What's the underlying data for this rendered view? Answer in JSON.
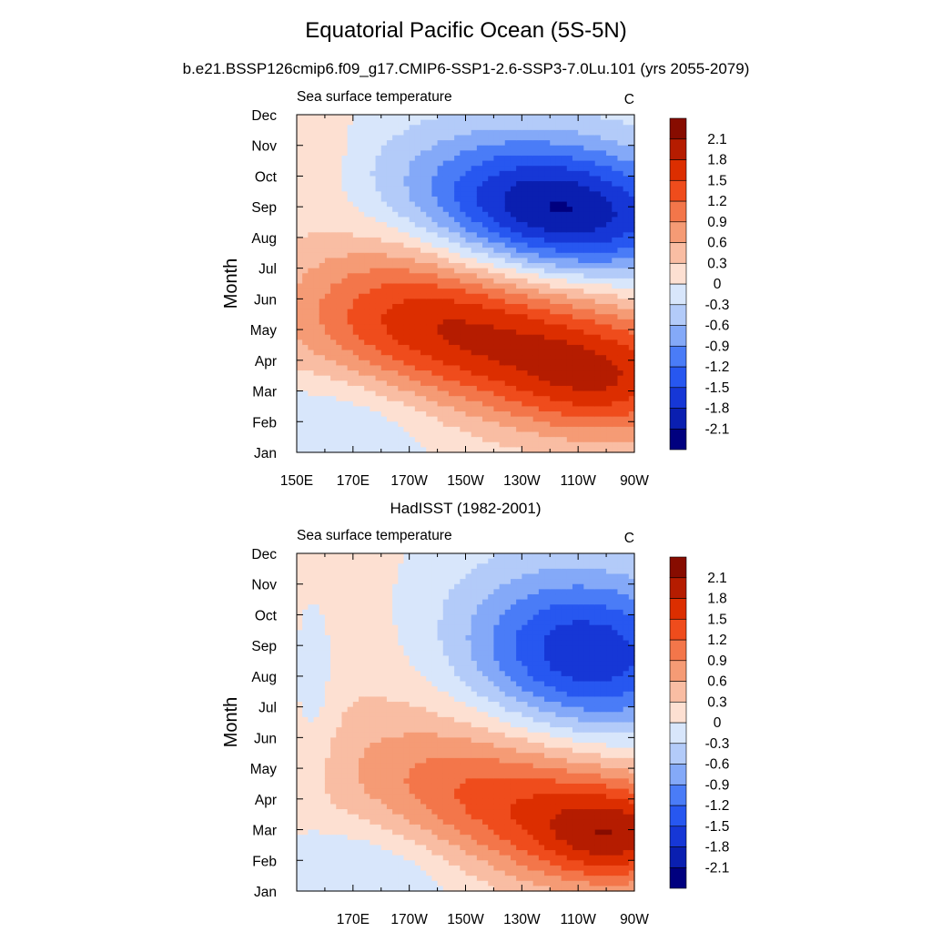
{
  "page": {
    "title": "Equatorial Pacific Ocean (5S-5N)",
    "subtitle": "b.e21.BSSP126cmip6.f09_g17.CMIP6-SSP1-2.6-SSP3-7.0Lu.101 (yrs 2055-2079)"
  },
  "chart_data": [
    {
      "type": "heatmap",
      "panel_title": "",
      "left_label": "Sea surface temperature",
      "units": "C",
      "ylabel": "Month",
      "xlabel": "",
      "x_tick_labels": [
        "150E",
        "170E",
        "170W",
        "150W",
        "130W",
        "110W",
        "90W"
      ],
      "y_tick_labels": [
        "Jan",
        "Feb",
        "Mar",
        "Apr",
        "May",
        "Jun",
        "Jul",
        "Aug",
        "Sep",
        "Oct",
        "Nov",
        "Dec"
      ],
      "xlim": [
        150,
        270
      ],
      "contour_levels": [
        "-2.1",
        "-1.8",
        "-1.5",
        "-1.2",
        "-0.9",
        "-0.6",
        "-0.3",
        "0",
        "0.3",
        "0.6",
        "0.9",
        "1.2",
        "1.5",
        "1.8",
        "2.1"
      ],
      "colors": [
        "#00007f",
        "#0a1fb0",
        "#1637d6",
        "#2757f0",
        "#4a7cf7",
        "#84a9f8",
        "#b3cbf9",
        "#d8e6fb",
        "#fde0d2",
        "#f9bda3",
        "#f59b75",
        "#f3764a",
        "#ef4c1c",
        "#dc2e00",
        "#b51c00",
        "#870c00"
      ],
      "anomaly_features": [
        {
          "center_lon": 262,
          "center_month": 3.1,
          "lon_spread": 26,
          "month_spread": 1.3,
          "amplitude": 1.1
        },
        {
          "center_lon": 225,
          "center_month": 4.3,
          "lon_spread": 45,
          "month_spread": 1.6,
          "amplitude": 1.1
        },
        {
          "center_lon": 205,
          "center_month": 5.6,
          "lon_spread": 40,
          "month_spread": 1.6,
          "amplitude": 0.8
        },
        {
          "center_lon": 182,
          "center_month": 6.6,
          "lon_spread": 28,
          "month_spread": 1.9,
          "amplitude": 0.45
        },
        {
          "center_lon": 250,
          "center_month": 8.5,
          "lon_spread": 33,
          "month_spread": 1.5,
          "amplitude": -1.7
        },
        {
          "center_lon": 222,
          "center_month": 9.8,
          "lon_spread": 32,
          "month_spread": 1.5,
          "amplitude": -0.9
        },
        {
          "center_lon": 168,
          "center_month": 2.3,
          "lon_spread": 24,
          "month_spread": 1.4,
          "amplitude": -0.45
        },
        {
          "center_lon": 158,
          "center_month": 11.0,
          "lon_spread": 8,
          "month_spread": 1.6,
          "amplitude": 0.3
        }
      ]
    },
    {
      "type": "heatmap",
      "panel_title": "HadISST (1982-2001)",
      "left_label": "Sea surface temperature",
      "units": "C",
      "ylabel": "Month",
      "xlabel": "",
      "x_tick_labels": [
        "170E",
        "170W",
        "150W",
        "130W",
        "110W",
        "90W"
      ],
      "y_tick_labels": [
        "Jan",
        "Feb",
        "Mar",
        "Apr",
        "May",
        "Jun",
        "Jul",
        "Aug",
        "Sep",
        "Oct",
        "Nov",
        "Dec"
      ],
      "xlim": [
        150,
        270
      ],
      "contour_levels": [
        "-2.1",
        "-1.8",
        "-1.5",
        "-1.2",
        "-0.9",
        "-0.6",
        "-0.3",
        "0",
        "0.3",
        "0.6",
        "0.9",
        "1.2",
        "1.5",
        "1.8",
        "2.1"
      ],
      "colors": [
        "#00007f",
        "#0a1fb0",
        "#1637d6",
        "#2757f0",
        "#4a7cf7",
        "#84a9f8",
        "#b3cbf9",
        "#d8e6fb",
        "#fde0d2",
        "#f9bda3",
        "#f59b75",
        "#f3764a",
        "#ef4c1c",
        "#dc2e00",
        "#b51c00",
        "#870c00"
      ],
      "anomaly_features": [
        {
          "center_lon": 265,
          "center_month": 2.7,
          "lon_spread": 22,
          "month_spread": 1.2,
          "amplitude": 1.4
        },
        {
          "center_lon": 232,
          "center_month": 3.6,
          "lon_spread": 38,
          "month_spread": 1.6,
          "amplitude": 1.0
        },
        {
          "center_lon": 205,
          "center_month": 4.8,
          "lon_spread": 35,
          "month_spread": 1.7,
          "amplitude": 0.45
        },
        {
          "center_lon": 180,
          "center_month": 7.5,
          "lon_spread": 40,
          "month_spread": 3.5,
          "amplitude": 0.25
        },
        {
          "center_lon": 258,
          "center_month": 8.5,
          "lon_spread": 28,
          "month_spread": 1.8,
          "amplitude": -1.4
        },
        {
          "center_lon": 232,
          "center_month": 9.5,
          "lon_spread": 30,
          "month_spread": 2.0,
          "amplitude": -0.6
        },
        {
          "center_lon": 180,
          "center_month": 2.0,
          "lon_spread": 25,
          "month_spread": 1.4,
          "amplitude": -0.55
        },
        {
          "center_lon": 156,
          "center_month": 7.5,
          "lon_spread": 6,
          "month_spread": 2.0,
          "amplitude": -0.35
        }
      ]
    }
  ]
}
